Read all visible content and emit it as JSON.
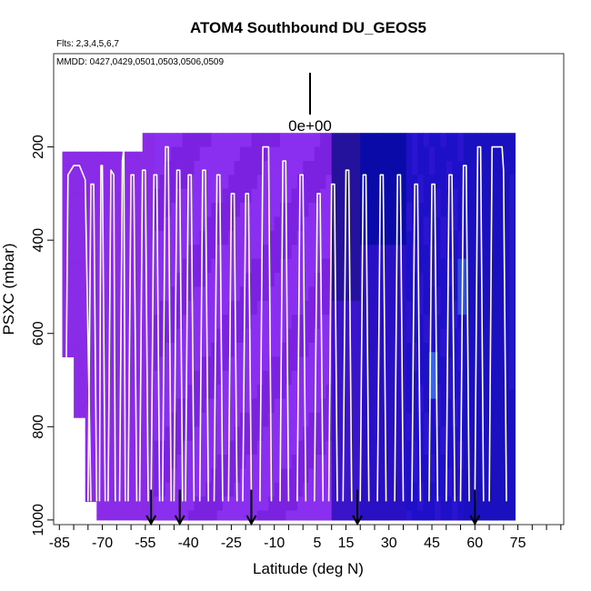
{
  "chart_data": {
    "type": "heatmap",
    "title": "ATOM4 Southbound DU_GEOS5",
    "flights_text": "Flts: 2,3,4,5,6,7",
    "mmdd_text": "MMDD: 0427,0429,0501,0503,0506,0509",
    "scale_label": "0e+00",
    "xlabel": "Latitude (deg N)",
    "ylabel": "PSXC (mbar)",
    "xlim": [
      -87,
      91
    ],
    "ylim": [
      1010,
      0
    ],
    "x_ticks": [
      -85,
      -70,
      -55,
      -40,
      -25,
      -10,
      5,
      15,
      30,
      45,
      60,
      75
    ],
    "x_tick_labels": [
      "-85",
      "-70",
      "-55",
      "-40",
      "-25",
      "-10",
      "5",
      "15",
      "30",
      "45",
      "60",
      "75"
    ],
    "y_ticks": [
      200,
      400,
      600,
      800,
      1000
    ],
    "y_tick_labels": [
      "200",
      "400",
      "600",
      "800",
      "1000"
    ],
    "arrows_lat": [
      -53,
      -43,
      -18,
      19,
      60
    ],
    "colors": {
      "south_fill": "#8a2be8",
      "mid_fill": "#7a22e0",
      "north_fill": "#1e10c8",
      "deep_blue": "#0a0aa8",
      "highlight": "#3a64e0",
      "track": "#ffffff"
    },
    "profiles": [
      {
        "lat": [
          -83,
          -82,
          -80,
          -78,
          -76,
          -74
        ],
        "p": [
          960,
          260,
          240,
          240,
          270,
          960
        ]
      },
      {
        "lat": [
          -75,
          -74,
          -73,
          -72
        ],
        "p": [
          960,
          280,
          280,
          960
        ]
      },
      {
        "lat": [
          -71,
          -70.5,
          -70,
          -69
        ],
        "p": [
          960,
          240,
          240,
          960
        ]
      },
      {
        "lat": [
          -68,
          -67,
          -66,
          -65.5
        ],
        "p": [
          960,
          250,
          260,
          960
        ]
      },
      {
        "lat": [
          -64,
          -63,
          -62.5,
          -62
        ],
        "p": [
          960,
          230,
          200,
          960
        ]
      },
      {
        "lat": [
          -61,
          -60,
          -59,
          -58
        ],
        "p": [
          960,
          260,
          260,
          960
        ]
      },
      {
        "lat": [
          -57,
          -56,
          -55,
          -54
        ],
        "p": [
          960,
          250,
          250,
          960
        ]
      },
      {
        "lat": [
          -53,
          -52,
          -51,
          -50
        ],
        "p": [
          960,
          260,
          260,
          960
        ]
      },
      {
        "lat": [
          -49,
          -48,
          -47,
          -46
        ],
        "p": [
          960,
          200,
          200,
          960
        ]
      },
      {
        "lat": [
          -45,
          -44,
          -43,
          -42
        ],
        "p": [
          960,
          250,
          250,
          960
        ]
      },
      {
        "lat": [
          -41,
          -40,
          -39,
          -38
        ],
        "p": [
          960,
          260,
          260,
          960
        ]
      },
      {
        "lat": [
          -36,
          -35,
          -34,
          -33
        ],
        "p": [
          960,
          250,
          250,
          960
        ]
      },
      {
        "lat": [
          -31,
          -30,
          -29,
          -28
        ],
        "p": [
          960,
          260,
          260,
          960
        ]
      },
      {
        "lat": [
          -26,
          -25,
          -24,
          -23
        ],
        "p": [
          960,
          300,
          300,
          960
        ]
      },
      {
        "lat": [
          -21,
          -20,
          -19,
          -18
        ],
        "p": [
          960,
          300,
          300,
          960
        ]
      },
      {
        "lat": [
          -15,
          -14,
          -12,
          -11
        ],
        "p": [
          960,
          200,
          200,
          960
        ]
      },
      {
        "lat": [
          -8,
          -7,
          -6,
          -5
        ],
        "p": [
          960,
          230,
          230,
          960
        ]
      },
      {
        "lat": [
          -2,
          -1,
          0,
          1
        ],
        "p": [
          960,
          260,
          260,
          960
        ]
      },
      {
        "lat": [
          4,
          5,
          6,
          7
        ],
        "p": [
          960,
          300,
          300,
          960
        ]
      },
      {
        "lat": [
          9,
          10,
          11,
          12
        ],
        "p": [
          960,
          280,
          280,
          960
        ]
      },
      {
        "lat": [
          14,
          15,
          16,
          17
        ],
        "p": [
          960,
          250,
          250,
          960
        ]
      },
      {
        "lat": [
          20,
          21,
          22,
          23
        ],
        "p": [
          960,
          260,
          260,
          960
        ]
      },
      {
        "lat": [
          26,
          27,
          28,
          29
        ],
        "p": [
          960,
          260,
          260,
          960
        ]
      },
      {
        "lat": [
          32,
          33,
          34,
          35
        ],
        "p": [
          960,
          260,
          260,
          960
        ]
      },
      {
        "lat": [
          38,
          39,
          40,
          41
        ],
        "p": [
          960,
          280,
          280,
          960
        ]
      },
      {
        "lat": [
          44,
          45,
          46,
          47
        ],
        "p": [
          960,
          280,
          280,
          960
        ]
      },
      {
        "lat": [
          50,
          51,
          52,
          53
        ],
        "p": [
          960,
          260,
          260,
          960
        ]
      },
      {
        "lat": [
          55,
          56,
          57,
          58
        ],
        "p": [
          960,
          240,
          240,
          960
        ]
      },
      {
        "lat": [
          60,
          61,
          62,
          63
        ],
        "p": [
          960,
          200,
          200,
          960
        ]
      },
      {
        "lat": [
          65,
          66,
          68,
          69.5,
          70,
          71
        ],
        "p": [
          960,
          200,
          200,
          200,
          250,
          960
        ]
      }
    ]
  }
}
